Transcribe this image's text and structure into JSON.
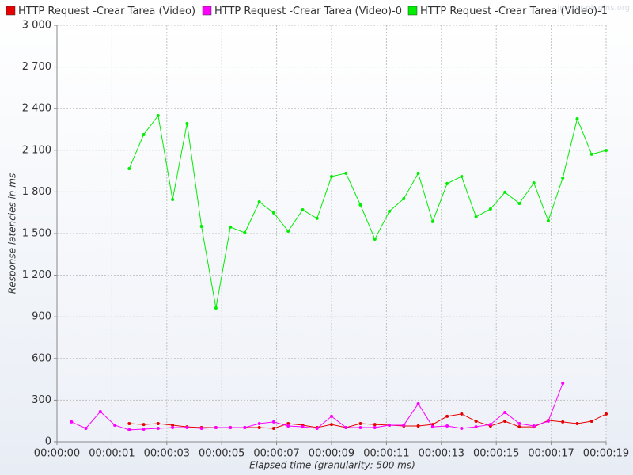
{
  "chart_data": {
    "type": "line",
    "watermark": "jmeter-plugins.org",
    "xlabel": "Elapsed time (granularity: 500 ms)",
    "ylabel": "Response latencies in ms",
    "xlim": [
      0,
      19
    ],
    "ylim": [
      0,
      3000
    ],
    "grid": true,
    "legend": "top",
    "xticks": [
      {
        "value": 0,
        "label": "00:00:00"
      },
      {
        "value": 1.9,
        "label": "00:00:01"
      },
      {
        "value": 3.8,
        "label": "00:00:03"
      },
      {
        "value": 5.7,
        "label": "00:00:05"
      },
      {
        "value": 7.6,
        "label": "00:00:07"
      },
      {
        "value": 9.5,
        "label": "00:00:09"
      },
      {
        "value": 11.4,
        "label": "00:00:11"
      },
      {
        "value": 13.3,
        "label": "00:00:13"
      },
      {
        "value": 15.2,
        "label": "00:00:15"
      },
      {
        "value": 17.1,
        "label": "00:00:17"
      },
      {
        "value": 19,
        "label": "00:00:19"
      }
    ],
    "yticks": [
      0,
      300,
      600,
      900,
      {
        "value": 1200,
        "label": "1 200"
      },
      {
        "value": 1500,
        "label": "1 500"
      },
      {
        "value": 1800,
        "label": "1 800"
      },
      {
        "value": 2100,
        "label": "2 100"
      },
      {
        "value": 2400,
        "label": "2 400"
      },
      {
        "value": 2700,
        "label": "2 700"
      },
      {
        "value": 3000,
        "label": "3 000"
      }
    ],
    "x": [
      0.5,
      1,
      1.5,
      2,
      2.5,
      3,
      3.5,
      4,
      4.5,
      5,
      5.5,
      6,
      6.5,
      7,
      7.5,
      8,
      8.5,
      9,
      9.5,
      10,
      10.5,
      11,
      11.5,
      12,
      12.5,
      13,
      13.5,
      14,
      14.5,
      15,
      15.5,
      16,
      16.5,
      17,
      17.5,
      18,
      18.5,
      19
    ],
    "series": [
      {
        "name": "HTTP Request -Crear Tarea  (Video)",
        "color": "#e60000",
        "values": [
          null,
          null,
          null,
          null,
          131,
          125,
          131,
          120,
          108,
          103,
          103,
          103,
          103,
          103,
          97,
          131,
          120,
          103,
          125,
          103,
          131,
          125,
          120,
          114,
          114,
          125,
          183,
          200,
          148,
          114,
          148,
          108,
          108,
          154,
          143,
          131,
          148,
          200
        ]
      },
      {
        "name": "HTTP Request -Crear Tarea  (Video)-0",
        "color": "#ff00ff",
        "values": [
          143,
          97,
          217,
          120,
          86,
          91,
          97,
          103,
          103,
          97,
          103,
          103,
          103,
          131,
          143,
          114,
          108,
          97,
          183,
          103,
          103,
          103,
          120,
          120,
          274,
          108,
          114,
          97,
          108,
          125,
          211,
          131,
          114,
          148,
          422,
          null,
          null,
          null
        ]
      },
      {
        "name": "HTTP Request -Crear Tarea  (Video)-1",
        "color": "#00ee00",
        "values": [
          null,
          null,
          null,
          null,
          1968,
          2213,
          2350,
          1745,
          2293,
          1551,
          964,
          1546,
          1506,
          1728,
          1649,
          1517,
          1671,
          1609,
          1911,
          1934,
          1706,
          1460,
          1660,
          1751,
          1934,
          1586,
          1860,
          1911,
          1620,
          1677,
          1797,
          1717,
          1865,
          1592,
          1900,
          2327,
          2071,
          2099
        ]
      }
    ]
  }
}
